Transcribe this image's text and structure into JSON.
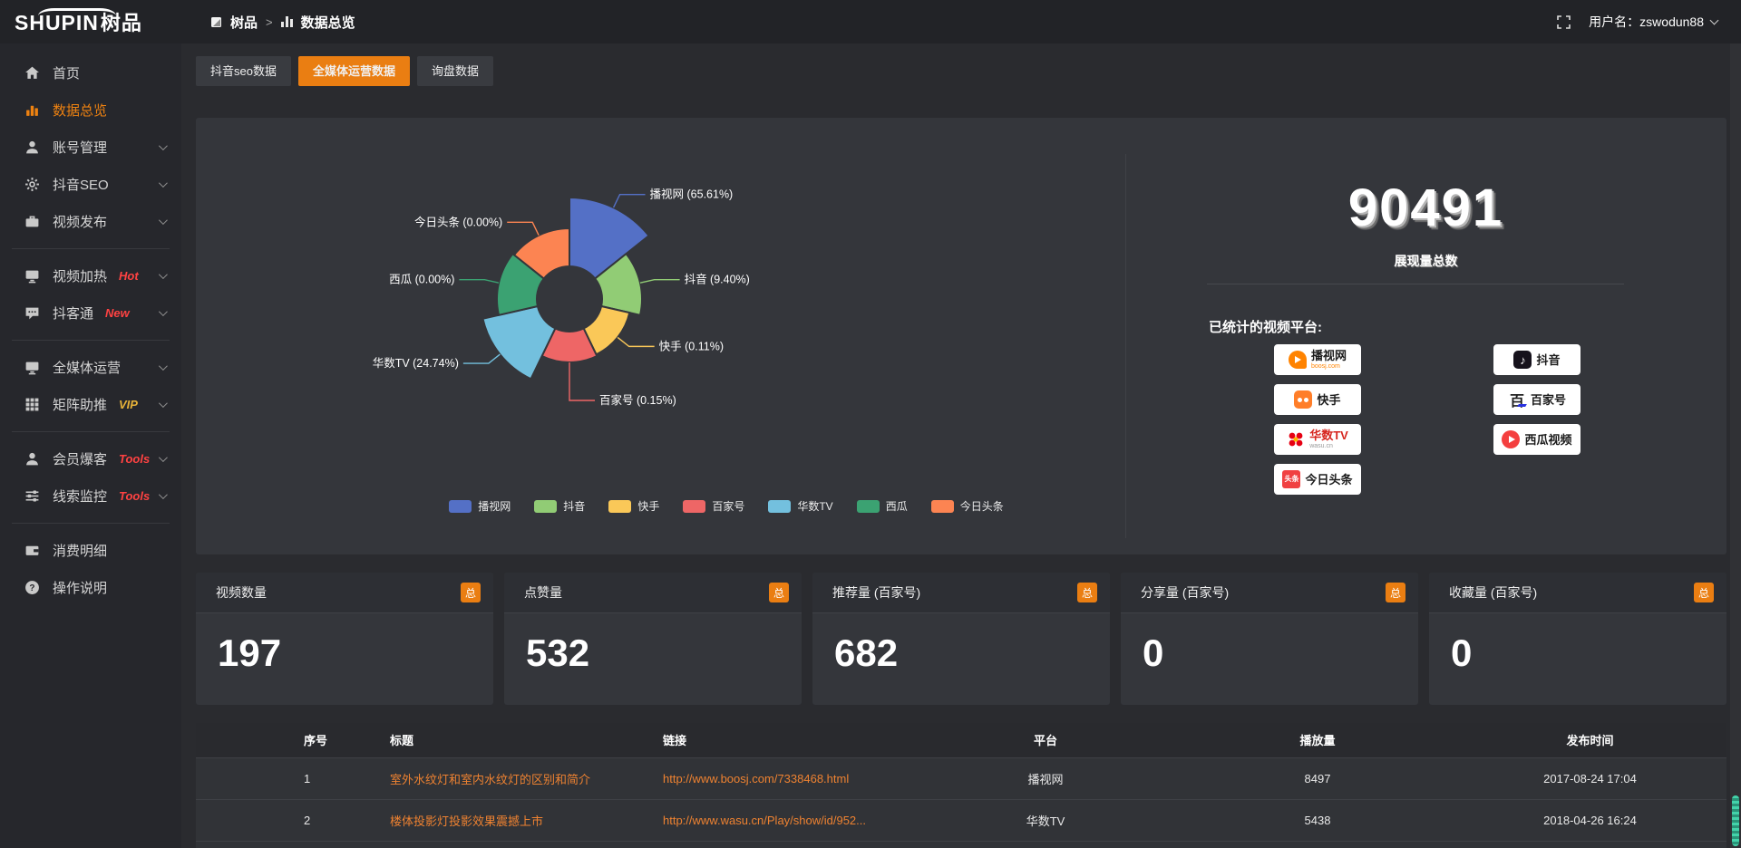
{
  "header": {
    "logo": {
      "primary": "SHUPIN",
      "secondary": "树品"
    },
    "breadcrumb": {
      "root": "树品",
      "separator": ">",
      "current": "数据总览"
    },
    "username": "用户名：zswodun88"
  },
  "sidebar": {
    "items": [
      {
        "icon": "home",
        "label": "首页"
      },
      {
        "icon": "chart",
        "label": "数据总览",
        "active": true
      },
      {
        "icon": "user",
        "label": "账号管理",
        "chevron": true
      },
      {
        "icon": "gear",
        "label": "抖音SEO",
        "chevron": true
      },
      {
        "icon": "case",
        "label": "视频发布",
        "chevron": true
      },
      {
        "divider": true
      },
      {
        "icon": "monitor",
        "label": "视频加热",
        "tag": "Hot",
        "tag_color": "#ff4242",
        "chevron": true
      },
      {
        "icon": "chat",
        "label": "抖客通",
        "tag": "New",
        "tag_color": "#ff4242",
        "chevron": true
      },
      {
        "divider": true
      },
      {
        "icon": "monitor",
        "label": "全媒体运营",
        "chevron": true
      },
      {
        "icon": "grid",
        "label": "矩阵助推",
        "tag": "VIP",
        "tag_color": "#e8b339",
        "chevron": true
      },
      {
        "divider": true
      },
      {
        "icon": "user",
        "label": "会员爆客",
        "tag": "Tools",
        "tag_color": "#ff4242",
        "chevron": true
      },
      {
        "icon": "sliders",
        "label": "线索监控",
        "tag": "Tools",
        "tag_color": "#ff4242",
        "chevron": true
      },
      {
        "divider": true
      },
      {
        "icon": "wallet",
        "label": "消费明细"
      },
      {
        "icon": "help",
        "label": "操作说明"
      }
    ]
  },
  "tabs": [
    {
      "label": "抖音seo数据",
      "active": false
    },
    {
      "label": "全媒体运营数据",
      "active": true
    },
    {
      "label": "询盘数据",
      "active": false
    }
  ],
  "chart_data": {
    "type": "pie",
    "subtype": "nightingale-rose",
    "title": "",
    "legend_position": "bottom",
    "inner_radius": 36,
    "label_format": "{name} ({pct}%)",
    "series": [
      {
        "name": "播视网",
        "pct": "65.61",
        "color": "#5470c6",
        "radius": 112
      },
      {
        "name": "抖音",
        "pct": "9.40",
        "color": "#91cc75",
        "radius": 80
      },
      {
        "name": "快手",
        "pct": "0.11",
        "color": "#fac858",
        "radius": 68
      },
      {
        "name": "百家号",
        "pct": "0.15",
        "color": "#ee6666",
        "radius": 70
      },
      {
        "name": "华数TV",
        "pct": "24.74",
        "color": "#73c0de",
        "radius": 98
      },
      {
        "name": "西瓜",
        "pct": "0.00",
        "color": "#3ba272",
        "radius": 80
      },
      {
        "name": "今日头条",
        "pct": "0.00",
        "color": "#fc8452",
        "radius": 78
      }
    ]
  },
  "summary": {
    "total_value": "90491",
    "total_label": "展现量总数",
    "platforms_label": "已统计的视频平台:",
    "platform_badges": [
      {
        "name": "播视网",
        "sub": "boosj.com",
        "logo": "boosj",
        "column": "left"
      },
      {
        "name": "快手",
        "sub": "",
        "logo": "ks",
        "column": "left"
      },
      {
        "name": "华数TV",
        "sub": "wasu.cn",
        "logo": "wasu",
        "column": "left"
      },
      {
        "name": "今日头条",
        "sub": "",
        "logo": "tt",
        "column": "left"
      },
      {
        "name": "抖音",
        "sub": "",
        "logo": "dy",
        "column": "right"
      },
      {
        "name": "百家号",
        "sub": "",
        "logo": "bjh",
        "column": "right"
      },
      {
        "name": "西瓜视频",
        "sub": "",
        "logo": "xg",
        "column": "right"
      }
    ]
  },
  "stat_cards": [
    {
      "title": "视频数量",
      "badge": "总",
      "value": "197"
    },
    {
      "title": "点赞量",
      "badge": "总",
      "value": "532"
    },
    {
      "title": "推荐量 (百家号)",
      "badge": "总",
      "value": "682"
    },
    {
      "title": "分享量 (百家号)",
      "badge": "总",
      "value": "0"
    },
    {
      "title": "收藏量 (百家号)",
      "badge": "总",
      "value": "0"
    }
  ],
  "table": {
    "headers": [
      "",
      "序号",
      "标题",
      "链接",
      "平台",
      "播放量",
      "发布时间"
    ],
    "rows": [
      {
        "no": "1",
        "title": "室外水纹灯和室内水纹灯的区别和简介",
        "link": "http://www.boosj.com/7338468.html",
        "platform": "播视网",
        "plays": "8497",
        "time": "2017-08-24 17:04"
      },
      {
        "no": "2",
        "title": "楼体投影灯投影效果震撼上市",
        "link": "http://www.wasu.cn/Play/show/id/952...",
        "platform": "华数TV",
        "plays": "5438",
        "time": "2018-04-26 16:24"
      }
    ]
  },
  "accent_color": "#ea7e12",
  "link_color": "#ee8231"
}
